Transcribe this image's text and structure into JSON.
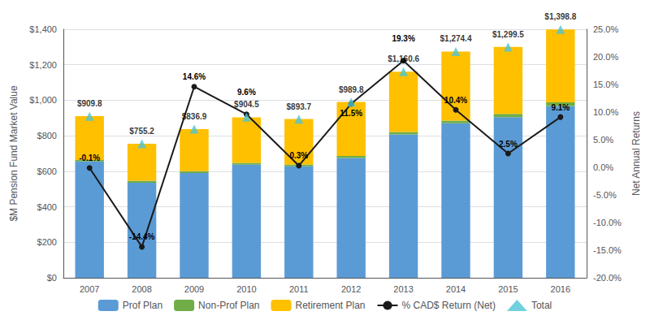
{
  "chart_data": {
    "type": "bar",
    "stacked": true,
    "categories": [
      "2007",
      "2008",
      "2009",
      "2010",
      "2011",
      "2012",
      "2013",
      "2014",
      "2015",
      "2016"
    ],
    "series": [
      {
        "name": "Prof Plan",
        "type": "bar",
        "color": "#5B9BD5",
        "values": [
          655,
          535,
          590,
          637,
          628,
          675,
          808,
          870,
          905,
          968
        ]
      },
      {
        "name": "Non-Prof Plan",
        "type": "bar",
        "color": "#70AD47",
        "values": [
          8,
          12,
          10,
          10,
          10,
          11,
          13,
          15,
          18,
          20
        ]
      },
      {
        "name": "Retirement Plan",
        "type": "bar",
        "color": "#FFC000",
        "values": [
          247,
          208,
          237,
          257,
          256,
          304,
          340,
          389,
          377,
          411
        ]
      },
      {
        "name": "% CAD$ Return (Net)",
        "type": "line",
        "axis": "y2",
        "color": "#1a1a1a",
        "marker": "circle",
        "values": [
          -0.1,
          -14.4,
          14.6,
          9.6,
          0.3,
          11.5,
          19.3,
          10.4,
          2.5,
          9.1
        ],
        "value_labels": [
          "-0.1%",
          "-14.4%",
          "14.6%",
          "9.6%",
          "0.3%",
          "11.5%",
          "19.3%",
          "10.4%",
          "2.5%",
          "9.1%"
        ],
        "data_labels": true
      },
      {
        "name": "Total",
        "type": "scatter",
        "color": "#4EC4D4",
        "marker": "triangle",
        "values": [
          909.8,
          755.2,
          836.9,
          904.5,
          893.7,
          989.8,
          1160.6,
          1274.4,
          1299.5,
          1398.8
        ],
        "value_labels": [
          "$909.8",
          "$755.2",
          "$836.9",
          "$904.5",
          "$893.7",
          "$989.8",
          "$1,160.6",
          "$1,274.4",
          "$1,299.5",
          "$1,398.8"
        ],
        "data_labels": true
      }
    ],
    "ylabel": "$M Pension Fund Market Value",
    "y2label": "Net Annual Returns",
    "ylim": [
      0,
      1400
    ],
    "yticks": [
      {
        "value": 0,
        "label": "$0"
      },
      {
        "value": 200,
        "label": "$200"
      },
      {
        "value": 400,
        "label": "$400"
      },
      {
        "value": 600,
        "label": "$600"
      },
      {
        "value": 800,
        "label": "$800"
      },
      {
        "value": 1000,
        "label": "$1,000"
      },
      {
        "value": 1200,
        "label": "$1,200"
      },
      {
        "value": 1400,
        "label": "$1,400"
      }
    ],
    "y2lim": [
      -20,
      25
    ],
    "y2ticks": [
      {
        "value": -20,
        "label": "-20.0%"
      },
      {
        "value": -15,
        "label": "-15.0%"
      },
      {
        "value": -10,
        "label": "-10.0%"
      },
      {
        "value": -5,
        "label": "-5.0%"
      },
      {
        "value": 0,
        "label": "0.0%"
      },
      {
        "value": 5,
        "label": "5.0%"
      },
      {
        "value": 10,
        "label": "10.0%"
      },
      {
        "value": 15,
        "label": "15.0%"
      },
      {
        "value": 20,
        "label": "20.0%"
      },
      {
        "value": 25,
        "label": "25.0%"
      }
    ],
    "grid": true,
    "legend": "bottom"
  }
}
